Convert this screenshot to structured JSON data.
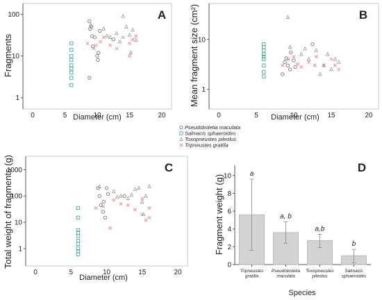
{
  "figure": {
    "legend_position": "between-top-panels"
  },
  "legend": [
    {
      "name": "Pseudoboletia maculata",
      "marker": "circle",
      "color": "#777777"
    },
    {
      "name": "Salmacis sphaeroides",
      "marker": "square",
      "color": "#4aa89a"
    },
    {
      "name": "Toxopneustes pileolus",
      "marker": "triangle",
      "color": "#999999"
    },
    {
      "name": "Tripneustes gratilla",
      "marker": "cross",
      "color": "#e37d7d"
    }
  ],
  "chart_data": [
    {
      "panel": "A",
      "type": "scatter",
      "xlabel": "Diameter (cm)",
      "ylabel": "Fragments",
      "xlim": [
        0,
        20
      ],
      "x_ticks": [
        0,
        5,
        10,
        15,
        20
      ],
      "y_scale": "log",
      "ylim": [
        0.7,
        150
      ],
      "y_ticks": [
        1,
        10,
        100
      ],
      "grid": false,
      "series": [
        {
          "name": "Pseudoboletia maculata",
          "marker": "circle",
          "color": "#777777",
          "points": [
            [
              8.8,
              68
            ],
            [
              8.9,
              45
            ],
            [
              9.1,
              50
            ],
            [
              9.2,
              30
            ],
            [
              9.3,
              17
            ],
            [
              8.8,
              3
            ],
            [
              9.6,
              28
            ],
            [
              10,
              10
            ],
            [
              10.1,
              8
            ],
            [
              10.2,
              12
            ],
            [
              10.4,
              40
            ],
            [
              12.5,
              25
            ]
          ]
        },
        {
          "name": "Salmacis sphaeroides",
          "marker": "square",
          "color": "#4aa89a",
          "points": [
            [
              6,
              20
            ],
            [
              6,
              14
            ],
            [
              6,
              10
            ],
            [
              6,
              8
            ],
            [
              6,
              6
            ],
            [
              6,
              5
            ],
            [
              6,
              4
            ],
            [
              6,
              3
            ],
            [
              6,
              2
            ]
          ]
        },
        {
          "name": "Toxopneustes pileolus",
          "marker": "triangle",
          "color": "#999999",
          "points": [
            [
              9,
              55
            ],
            [
              11,
              45
            ],
            [
              12,
              28
            ],
            [
              13,
              35
            ],
            [
              14,
              90
            ],
            [
              14.5,
              50
            ],
            [
              15,
              32
            ],
            [
              15.2,
              12
            ],
            [
              15.5,
              42
            ],
            [
              16,
              24
            ],
            [
              13.5,
              22
            ],
            [
              11.5,
              30
            ]
          ]
        },
        {
          "name": "Tripneustes gratilla",
          "marker": "cross",
          "color": "#e37d7d",
          "points": [
            [
              8.5,
              20
            ],
            [
              9.5,
              15
            ],
            [
              10.5,
              22
            ],
            [
              11,
              28
            ],
            [
              12,
              18
            ],
            [
              13,
              15
            ],
            [
              14,
              28
            ],
            [
              15,
              20
            ],
            [
              15.5,
              25
            ],
            [
              16,
              30
            ],
            [
              15,
              10
            ],
            [
              9.8,
              18
            ]
          ]
        }
      ]
    },
    {
      "panel": "B",
      "type": "scatter",
      "xlabel": "Diameter (cm)",
      "ylabel": "Mean fragment size (cm²)",
      "xlim": [
        0,
        20
      ],
      "x_ticks": [
        0,
        5,
        10,
        15,
        20
      ],
      "y_scale": "log",
      "ylim": [
        0.5,
        45
      ],
      "y_ticks": [
        1,
        10
      ],
      "grid": false,
      "series": [
        {
          "name": "Pseudoboletia maculata",
          "marker": "circle",
          "color": "#777777",
          "points": [
            [
              8.8,
              3.5
            ],
            [
              9,
              4.2
            ],
            [
              9.2,
              3
            ],
            [
              9.5,
              2.5
            ],
            [
              9.6,
              5.5
            ],
            [
              10,
              3.8
            ],
            [
              10.2,
              2.8
            ],
            [
              12.5,
              8
            ],
            [
              8.5,
              2
            ]
          ]
        },
        {
          "name": "Salmacis sphaeroides",
          "marker": "square",
          "color": "#4aa89a",
          "points": [
            [
              6,
              8
            ],
            [
              6,
              7
            ],
            [
              6,
              6
            ],
            [
              6,
              5
            ],
            [
              6,
              4.5
            ],
            [
              6,
              4
            ],
            [
              6,
              3
            ],
            [
              6,
              2.2
            ],
            [
              6,
              1.8
            ]
          ]
        },
        {
          "name": "Toxopneustes pileolus",
          "marker": "triangle",
          "color": "#999999",
          "points": [
            [
              9.2,
              28
            ],
            [
              9.5,
              7
            ],
            [
              11,
              5
            ],
            [
              12,
              4
            ],
            [
              13,
              6
            ],
            [
              14,
              3
            ],
            [
              14.5,
              5
            ],
            [
              15,
              2.5
            ],
            [
              15.5,
              4
            ],
            [
              16,
              3.5
            ],
            [
              11.5,
              6.5
            ],
            [
              13.5,
              2
            ]
          ]
        },
        {
          "name": "Tripneustes gratilla",
          "marker": "cross",
          "color": "#e37d7d",
          "points": [
            [
              8.5,
              3
            ],
            [
              9.3,
              4
            ],
            [
              10.5,
              3.2
            ],
            [
              11,
              2.8
            ],
            [
              12,
              3.5
            ],
            [
              13,
              4.5
            ],
            [
              14,
              3
            ],
            [
              15,
              4
            ],
            [
              15.5,
              3
            ],
            [
              16,
              2.5
            ],
            [
              10,
              4.5
            ],
            [
              12.8,
              3
            ]
          ]
        }
      ]
    },
    {
      "panel": "C",
      "type": "scatter",
      "xlabel": "Diameter (cm)",
      "ylabel": "Total weight of fragments (g)",
      "xlim": [
        0,
        20
      ],
      "x_ticks": [
        0,
        5,
        10,
        15,
        20
      ],
      "y_scale": "log",
      "ylim": [
        0.4,
        2000
      ],
      "y_ticks": [
        1,
        10,
        100,
        1000
      ],
      "grid": false,
      "series": [
        {
          "name": "Pseudoboletia maculata",
          "marker": "circle",
          "color": "#777777",
          "points": [
            [
              8.8,
              200
            ],
            [
              9,
              100
            ],
            [
              9.2,
              45
            ],
            [
              9.5,
              25
            ],
            [
              9.8,
              15
            ],
            [
              10,
              200
            ],
            [
              10.2,
              120
            ],
            [
              12.5,
              100
            ],
            [
              9.6,
              60
            ]
          ]
        },
        {
          "name": "Salmacis sphaeroides",
          "marker": "square",
          "color": "#4aa89a",
          "points": [
            [
              6,
              35
            ],
            [
              6,
              15
            ],
            [
              6,
              5
            ],
            [
              6,
              4
            ],
            [
              6,
              3
            ],
            [
              6,
              2
            ],
            [
              6,
              1.5
            ],
            [
              6,
              1
            ],
            [
              6,
              0.8
            ],
            [
              6,
              0.6
            ]
          ]
        },
        {
          "name": "Toxopneustes pileolus",
          "marker": "triangle",
          "color": "#999999",
          "points": [
            [
              9,
              230
            ],
            [
              11,
              150
            ],
            [
              12,
              100
            ],
            [
              13,
              80
            ],
            [
              14,
              180
            ],
            [
              14.5,
              200
            ],
            [
              15,
              60
            ],
            [
              15.2,
              20
            ],
            [
              15.5,
              100
            ],
            [
              16,
              230
            ],
            [
              13.5,
              110
            ],
            [
              11.5,
              90
            ]
          ]
        },
        {
          "name": "Tripneustes gratilla",
          "marker": "cross",
          "color": "#e37d7d",
          "points": [
            [
              8.5,
              35
            ],
            [
              9.5,
              40
            ],
            [
              10.5,
              6
            ],
            [
              11,
              70
            ],
            [
              12,
              50
            ],
            [
              13,
              45
            ],
            [
              14,
              30
            ],
            [
              15,
              20
            ],
            [
              15.5,
              12
            ],
            [
              16,
              35
            ],
            [
              15,
              80
            ],
            [
              16,
              15
            ]
          ]
        }
      ]
    },
    {
      "panel": "D",
      "type": "bar",
      "xlabel": "Species",
      "ylabel": "Fragment weight (g)",
      "ylim": [
        0,
        11
      ],
      "y_ticks": [
        0,
        2,
        4,
        6,
        8,
        10
      ],
      "categories": [
        [
          "Tripneustes",
          "gratilla"
        ],
        [
          "Pseudoboletia",
          "maculata"
        ],
        [
          "Toxopneustes",
          "pileolus"
        ],
        [
          "Salmacis",
          "sphaeroides"
        ]
      ],
      "values": [
        5.6,
        3.6,
        2.7,
        1.0
      ],
      "error_low": [
        1.6,
        2.4,
        1.9,
        0.2
      ],
      "error_high": [
        9.6,
        4.8,
        3.4,
        1.7
      ],
      "annotations": [
        "a",
        "a, b",
        "a,b",
        "b"
      ],
      "bar_color": "#d3d3d3"
    }
  ]
}
